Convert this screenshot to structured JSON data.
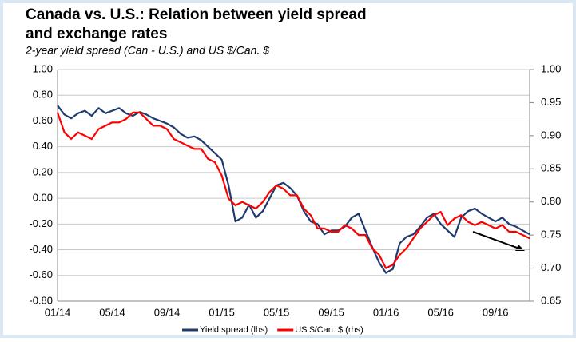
{
  "chart_data": {
    "type": "line",
    "title": "Canada vs. U.S.: Relation between yield spread and exchange rates",
    "subtitle": "2-year yield spread (Can - U.S.) and US $/Can. $",
    "categories": [
      "01/14",
      null,
      null,
      null,
      null,
      null,
      null,
      null,
      "05/14",
      null,
      null,
      null,
      null,
      null,
      null,
      null,
      "09/14",
      null,
      null,
      null,
      null,
      null,
      null,
      null,
      "01/15",
      null,
      null,
      null,
      null,
      null,
      null,
      null,
      "05/15",
      null,
      null,
      null,
      null,
      null,
      null,
      null,
      "09/15",
      null,
      null,
      null,
      null,
      null,
      null,
      null,
      "01/16",
      null,
      null,
      null,
      null,
      null,
      null,
      null,
      "05/16",
      null,
      null,
      null,
      null,
      null,
      null,
      null,
      "09/16",
      null,
      null,
      null,
      null,
      null
    ],
    "series": [
      {
        "name": "Yield spread (lhs)",
        "color": "#1f3a6e",
        "values": [
          0.72,
          0.65,
          0.62,
          0.66,
          0.68,
          0.64,
          0.7,
          0.66,
          0.68,
          0.7,
          0.66,
          0.64,
          0.67,
          0.65,
          0.62,
          0.6,
          0.58,
          0.55,
          0.5,
          0.47,
          0.48,
          0.45,
          0.4,
          0.35,
          0.3,
          0.1,
          -0.18,
          -0.15,
          -0.05,
          -0.15,
          -0.1,
          0.0,
          0.1,
          0.12,
          0.08,
          0.02,
          -0.1,
          -0.18,
          -0.2,
          -0.28,
          -0.25,
          -0.25,
          -0.22,
          -0.15,
          -0.12,
          -0.25,
          -0.38,
          -0.5,
          -0.58,
          -0.55,
          -0.35,
          -0.3,
          -0.28,
          -0.22,
          -0.15,
          -0.12,
          -0.2,
          -0.25,
          -0.3,
          -0.15,
          -0.1,
          -0.08,
          -0.12,
          -0.15,
          -0.18,
          -0.15,
          -0.2,
          -0.22,
          -0.25,
          -0.28
        ]
      },
      {
        "name": "US $/Can. $ (rhs)",
        "color": "#ff0000",
        "axis": "y2",
        "values": [
          0.935,
          0.905,
          0.895,
          0.905,
          0.9,
          0.895,
          0.91,
          0.915,
          0.92,
          0.92,
          0.925,
          0.935,
          0.935,
          0.925,
          0.915,
          0.915,
          0.91,
          0.895,
          0.89,
          0.885,
          0.88,
          0.88,
          0.865,
          0.86,
          0.84,
          0.805,
          0.795,
          0.8,
          0.795,
          0.79,
          0.8,
          0.815,
          0.825,
          0.82,
          0.81,
          0.81,
          0.79,
          0.78,
          0.76,
          0.76,
          0.755,
          0.755,
          0.765,
          0.76,
          0.75,
          0.75,
          0.73,
          0.72,
          0.7,
          0.705,
          0.72,
          0.73,
          0.745,
          0.76,
          0.77,
          0.78,
          0.785,
          0.765,
          0.775,
          0.78,
          0.77,
          0.765,
          0.77,
          0.765,
          0.76,
          0.765,
          0.755,
          0.755,
          0.75,
          0.745
        ]
      }
    ],
    "ylim": [
      -0.8,
      1.0
    ],
    "yticks": [
      {
        "value": -0.8,
        "label": "-0.80"
      },
      {
        "value": -0.6,
        "label": "-0.60"
      },
      {
        "value": -0.4,
        "label": "-0.40"
      },
      {
        "value": -0.2,
        "label": "-0.20"
      },
      {
        "value": 0,
        "label": "0.00"
      },
      {
        "value": 0.2,
        "label": "0.20"
      },
      {
        "value": 0.4,
        "label": "0.40"
      },
      {
        "value": 0.6,
        "label": "0.60"
      },
      {
        "value": 0.8,
        "label": "0.80"
      },
      {
        "value": 1.0,
        "label": "1.00"
      }
    ],
    "y2lim": [
      0.65,
      1.0
    ],
    "y2ticks": [
      0.65,
      {
        "value": 0.7,
        "label": "0.70"
      },
      0.75,
      {
        "value": 0.8,
        "label": "0.80"
      },
      0.85,
      {
        "value": 0.9,
        "label": "0.90"
      },
      0.95,
      {
        "value": 1.0,
        "label": "1.00"
      }
    ],
    "grid": true
  }
}
